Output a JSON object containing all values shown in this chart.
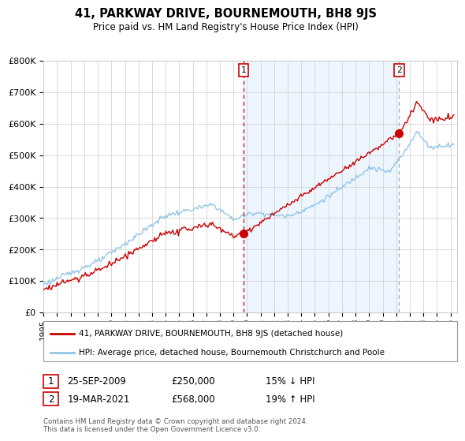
{
  "title": "41, PARKWAY DRIVE, BOURNEMOUTH, BH8 9JS",
  "subtitle": "Price paid vs. HM Land Registry's House Price Index (HPI)",
  "legend_line1": "41, PARKWAY DRIVE, BOURNEMOUTH, BH8 9JS (detached house)",
  "legend_line2": "HPI: Average price, detached house, Bournemouth Christchurch and Poole",
  "annotation1_label": "1",
  "annotation1_date": "25-SEP-2009",
  "annotation1_price": "£250,000",
  "annotation1_hpi": "15% ↓ HPI",
  "annotation2_label": "2",
  "annotation2_date": "19-MAR-2021",
  "annotation2_price": "£568,000",
  "annotation2_hpi": "19% ↑ HPI",
  "footnote": "Contains HM Land Registry data © Crown copyright and database right 2024.\nThis data is licensed under the Open Government Licence v3.0.",
  "sale1_year": 2009.73,
  "sale1_price": 250000,
  "sale2_year": 2021.21,
  "sale2_price": 568000,
  "hpi_color": "#92c5e8",
  "price_color": "#cc0000",
  "vline1_color": "#cc0000",
  "vline2_color": "#aaaaaa",
  "shade_color": "#ddeeff",
  "background_color": "#ffffff",
  "grid_color": "#cccccc",
  "ylim": [
    0,
    800000
  ],
  "xlim_start": 1995.0,
  "xlim_end": 2025.5,
  "yticks": [
    0,
    100000,
    200000,
    300000,
    400000,
    500000,
    600000,
    700000,
    800000
  ],
  "ytick_labels": [
    "£0",
    "£100K",
    "£200K",
    "£300K",
    "£400K",
    "£500K",
    "£600K",
    "£700K",
    "£800K"
  ],
  "xtick_years": [
    1995,
    1996,
    1997,
    1998,
    1999,
    2000,
    2001,
    2002,
    2003,
    2004,
    2005,
    2006,
    2007,
    2008,
    2009,
    2010,
    2011,
    2012,
    2013,
    2014,
    2015,
    2016,
    2017,
    2018,
    2019,
    2020,
    2021,
    2022,
    2023,
    2024,
    2025
  ]
}
